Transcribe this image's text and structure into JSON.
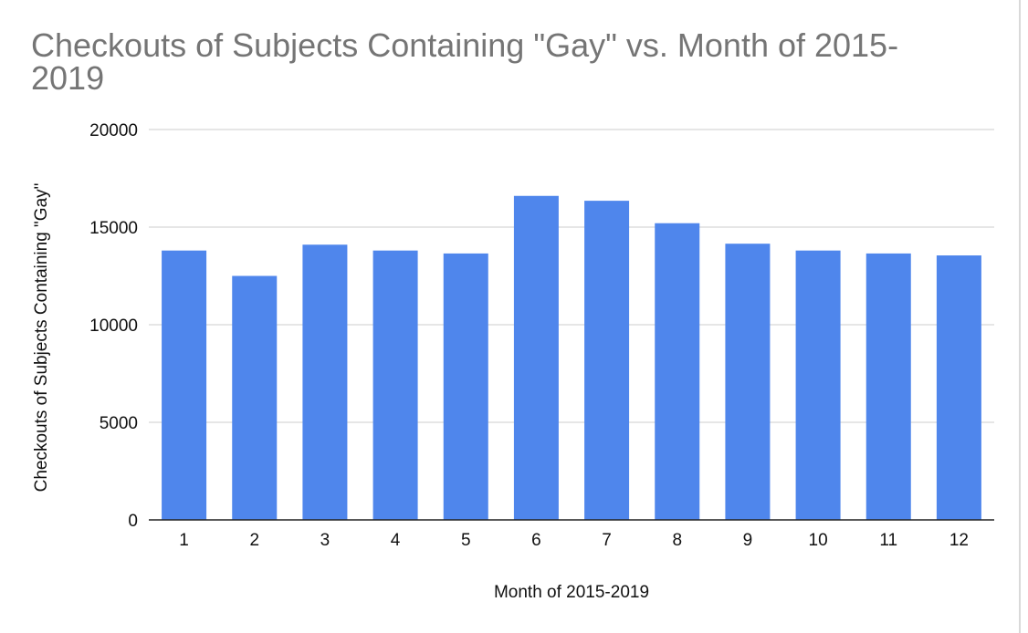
{
  "chart_data": {
    "type": "bar",
    "title": "Checkouts of Subjects Containing \"Gay\" vs. Month of 2015-2019",
    "xlabel": "Month of 2015-2019",
    "ylabel": "Checkouts of Subjects Containing \"Gay\"",
    "categories": [
      "1",
      "2",
      "3",
      "4",
      "5",
      "6",
      "7",
      "8",
      "9",
      "10",
      "11",
      "12"
    ],
    "values": [
      13800,
      12500,
      14100,
      13800,
      13650,
      16600,
      16350,
      15200,
      14150,
      13800,
      13650,
      13550
    ],
    "ylim": [
      0,
      20000
    ],
    "yticks": [
      0,
      5000,
      10000,
      15000,
      20000
    ],
    "grid": true,
    "legend": "none",
    "bar_color": "#4f86ec",
    "grid_color": "#cccccc",
    "axis_color": "#222222"
  }
}
